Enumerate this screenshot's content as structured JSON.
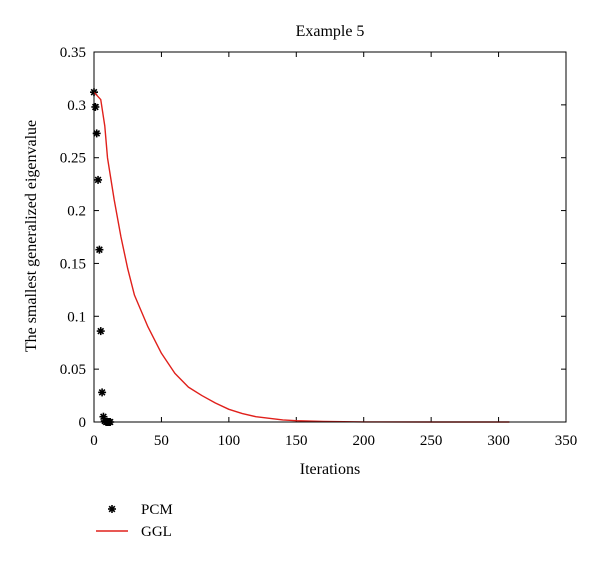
{
  "chart_data": {
    "type": "line",
    "title": "Example 5",
    "xlabel": "Iterations",
    "ylabel": "The smallest generalized eigenvalue",
    "xlim": [
      0,
      350
    ],
    "ylim": [
      0,
      0.35
    ],
    "xticks": [
      0,
      50,
      100,
      150,
      200,
      250,
      300,
      350
    ],
    "yticks": [
      0,
      0.05,
      0.1,
      0.15,
      0.2,
      0.25,
      0.3,
      0.35
    ],
    "xtick_labels": [
      "0",
      "50",
      "100",
      "150",
      "200",
      "250",
      "300",
      "350"
    ],
    "ytick_labels": [
      "0",
      "0.05",
      "0.1",
      "0.15",
      "0.2",
      "0.25",
      "0.3",
      "0.35"
    ],
    "grid": false,
    "legend_position": "bottom-left, outside plot",
    "series": [
      {
        "name": "PCM",
        "style": "markers",
        "marker": "*",
        "color": "#000000",
        "points": [
          [
            0,
            0.312
          ],
          [
            1,
            0.298
          ],
          [
            2,
            0.273
          ],
          [
            3,
            0.229
          ],
          [
            4,
            0.163
          ],
          [
            5,
            0.086
          ],
          [
            6,
            0.028
          ],
          [
            7,
            0.005
          ],
          [
            8,
            0.001
          ],
          [
            9,
            0.0
          ],
          [
            10,
            0.0
          ],
          [
            11,
            0.0
          ],
          [
            12,
            0.0
          ]
        ]
      },
      {
        "name": "GGL",
        "style": "line",
        "color": "#e0201b",
        "points": [
          [
            0,
            0.312
          ],
          [
            5,
            0.305
          ],
          [
            8,
            0.28
          ],
          [
            10,
            0.25
          ],
          [
            15,
            0.21
          ],
          [
            20,
            0.175
          ],
          [
            25,
            0.145
          ],
          [
            30,
            0.12
          ],
          [
            35,
            0.105
          ],
          [
            40,
            0.09
          ],
          [
            50,
            0.065
          ],
          [
            60,
            0.046
          ],
          [
            70,
            0.033
          ],
          [
            80,
            0.025
          ],
          [
            90,
            0.018
          ],
          [
            100,
            0.012
          ],
          [
            110,
            0.008
          ],
          [
            120,
            0.005
          ],
          [
            130,
            0.0035
          ],
          [
            140,
            0.002
          ],
          [
            150,
            0.0012
          ],
          [
            170,
            0.0005
          ],
          [
            200,
            0.0001
          ],
          [
            250,
            0.0
          ],
          [
            300,
            0.0
          ],
          [
            308,
            0.0
          ]
        ]
      }
    ]
  }
}
